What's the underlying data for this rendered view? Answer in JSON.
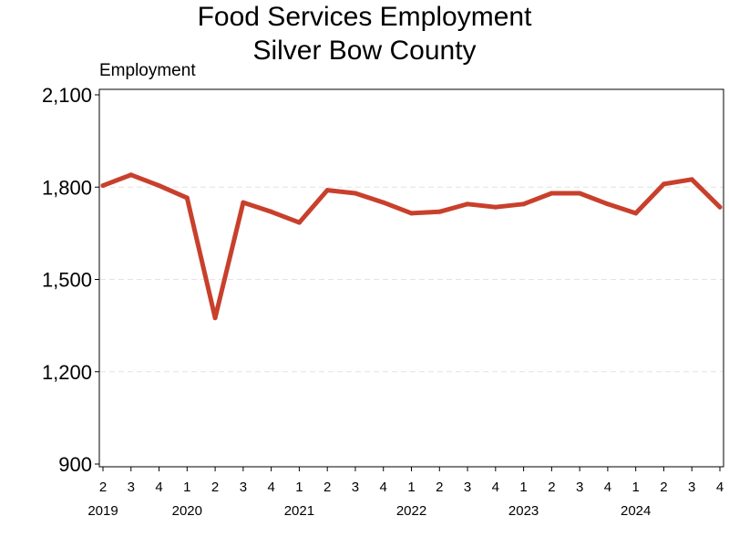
{
  "chart_data": {
    "type": "line",
    "title": "Food Services Employment",
    "subtitle": "Silver Bow County",
    "ylabel": "Employment",
    "xlabel": "",
    "ylim": [
      900,
      2100
    ],
    "yticks": [
      "2,100",
      "1,800",
      "1,500",
      "1,200",
      "900"
    ],
    "ytick_values": [
      2100,
      1800,
      1500,
      1200,
      900
    ],
    "grid": true,
    "line_color": "#c8402c",
    "quarters": [
      "2",
      "3",
      "4",
      "1",
      "2",
      "3",
      "4",
      "1",
      "2",
      "3",
      "4",
      "1",
      "2",
      "3",
      "4",
      "1",
      "2",
      "3",
      "4",
      "1",
      "2",
      "3",
      "4"
    ],
    "years": [
      {
        "label": "2019",
        "at_index": 0
      },
      {
        "label": "2020",
        "at_index": 3
      },
      {
        "label": "2021",
        "at_index": 7
      },
      {
        "label": "2022",
        "at_index": 11
      },
      {
        "label": "2023",
        "at_index": 15
      },
      {
        "label": "2024",
        "at_index": 19
      }
    ],
    "series": [
      {
        "values": [
          1805,
          1840,
          1805,
          1765,
          1375,
          1750,
          1720,
          1685,
          1790,
          1780,
          1750,
          1715,
          1720,
          1745,
          1735,
          1745,
          1780,
          1780,
          1745,
          1715,
          1810,
          1825,
          1735
        ]
      }
    ]
  }
}
